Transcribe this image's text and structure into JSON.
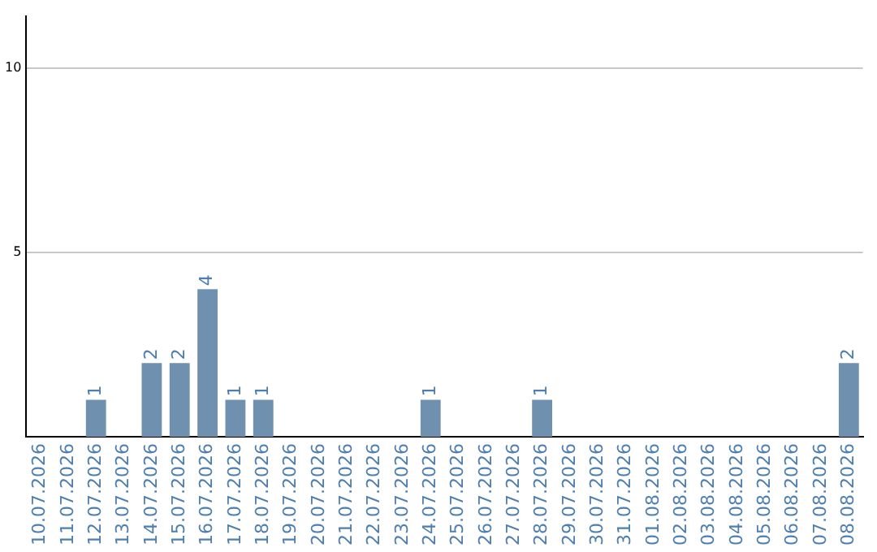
{
  "chart_data": {
    "type": "bar",
    "categories": [
      "10.07.2026",
      "11.07.2026",
      "12.07.2026",
      "13.07.2026",
      "14.07.2026",
      "15.07.2026",
      "16.07.2026",
      "17.07.2026",
      "18.07.2026",
      "19.07.2026",
      "20.07.2026",
      "21.07.2026",
      "22.07.2026",
      "23.07.2026",
      "24.07.2026",
      "25.07.2026",
      "26.07.2026",
      "27.07.2026",
      "28.07.2026",
      "29.07.2026",
      "30.07.2026",
      "31.07.2026",
      "01.08.2026",
      "02.08.2026",
      "03.08.2026",
      "04.08.2026",
      "05.08.2026",
      "06.08.2026",
      "07.08.2026",
      "08.08.2026"
    ],
    "values": [
      0,
      0,
      1,
      0,
      2,
      2,
      4,
      1,
      1,
      0,
      0,
      0,
      0,
      0,
      1,
      0,
      0,
      0,
      1,
      0,
      0,
      0,
      0,
      0,
      0,
      0,
      0,
      0,
      0,
      2
    ],
    "value_labels": [
      null,
      null,
      "1",
      null,
      "2",
      "2",
      "4",
      "1",
      "1",
      null,
      null,
      null,
      null,
      null,
      "1",
      null,
      null,
      null,
      "1",
      null,
      null,
      null,
      null,
      null,
      null,
      null,
      null,
      null,
      null,
      "2"
    ],
    "color": "#7090b0",
    "ylim": [
      0,
      11.4
    ],
    "yticks": [
      5,
      10
    ],
    "grid": "y",
    "legend": false
  }
}
